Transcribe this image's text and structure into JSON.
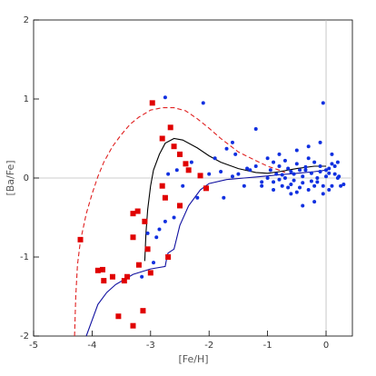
{
  "chart_data": {
    "type": "scatter",
    "xlabel": "[Fe/H]",
    "ylabel": "[Ba/Fe]",
    "xlim": [
      -5,
      0.45
    ],
    "ylim": [
      -2,
      2
    ],
    "xticks": [
      -5,
      -4,
      -3,
      -2,
      -1,
      0
    ],
    "yticks": [
      -2,
      -1,
      0,
      1,
      2
    ],
    "zero_lines": true,
    "series": [
      {
        "mode": "line",
        "dash": true,
        "color": "#e02020",
        "x": [
          -4.3,
          -4.28,
          -4.25,
          -4.2,
          -4.1,
          -4.0,
          -3.9,
          -3.8,
          -3.65,
          -3.5,
          -3.35,
          -3.2,
          -3.0,
          -2.8,
          -2.6,
          -2.4,
          -2.2,
          -2.0,
          -1.8,
          -1.5,
          -1.2,
          -1.0,
          -0.8,
          -0.7
        ],
        "y": [
          -2.0,
          -1.5,
          -1.1,
          -0.8,
          -0.45,
          -0.2,
          0.02,
          0.2,
          0.4,
          0.55,
          0.68,
          0.77,
          0.86,
          0.89,
          0.89,
          0.85,
          0.75,
          0.63,
          0.5,
          0.33,
          0.22,
          0.15,
          0.1,
          0.07
        ]
      },
      {
        "mode": "line",
        "dash": false,
        "color": "#000000",
        "x": [
          -3.1,
          -3.08,
          -3.05,
          -3.0,
          -2.95,
          -2.85,
          -2.75,
          -2.6,
          -2.45,
          -2.2,
          -2.0,
          -1.8,
          -1.5,
          -1.2,
          -1.0,
          -0.8,
          -0.5,
          -0.2,
          0.0
        ],
        "y": [
          -1.05,
          -0.7,
          -0.4,
          -0.1,
          0.1,
          0.3,
          0.44,
          0.5,
          0.48,
          0.38,
          0.28,
          0.2,
          0.12,
          0.07,
          0.06,
          0.08,
          0.12,
          0.15,
          0.15
        ]
      },
      {
        "mode": "line",
        "dash": false,
        "color": "#1010a0",
        "x": [
          -4.1,
          -4.0,
          -3.9,
          -3.75,
          -3.6,
          -3.3,
          -3.0,
          -2.75,
          -2.72,
          -2.7,
          -2.6,
          -2.5,
          -2.35,
          -2.15,
          -2.0,
          -1.7,
          -1.4,
          -1.1,
          -0.8,
          -0.5,
          -0.2,
          0.0
        ],
        "y": [
          -2.0,
          -1.8,
          -1.6,
          -1.45,
          -1.35,
          -1.22,
          -1.15,
          -1.12,
          -1.0,
          -0.95,
          -0.9,
          -0.6,
          -0.35,
          -0.15,
          -0.07,
          -0.02,
          0.0,
          0.02,
          0.04,
          0.06,
          0.08,
          0.1
        ]
      },
      {
        "mode": "markers",
        "marker": "square",
        "color": "#e00000",
        "x": [
          -2.97,
          -2.8,
          -2.66,
          -2.6,
          -2.5,
          -2.4,
          -2.35,
          -2.15,
          -2.05,
          -2.5,
          -2.75,
          -2.8,
          -3.3,
          -3.22,
          -3.1,
          -3.3,
          -3.05,
          -3.0,
          -3.2,
          -4.2,
          -3.9,
          -3.82,
          -3.8,
          -3.65,
          -3.4,
          -3.45,
          -3.55,
          -3.3,
          -3.13,
          -2.7
        ],
        "y": [
          0.95,
          0.5,
          0.64,
          0.4,
          0.3,
          0.18,
          0.1,
          0.03,
          -0.13,
          -0.35,
          -0.25,
          -0.1,
          -0.45,
          -0.42,
          -0.55,
          -0.75,
          -0.9,
          -1.2,
          -1.1,
          -0.78,
          -1.17,
          -1.16,
          -1.3,
          -1.25,
          -1.25,
          -1.3,
          -1.75,
          -1.87,
          -1.68,
          -1.0
        ]
      },
      {
        "mode": "markers",
        "marker": "circle",
        "color": "#1030e0",
        "x": [
          -2.75,
          -2.1,
          -0.05,
          -1.2,
          -1.6,
          -1.7,
          -1.55,
          -1.9,
          -2.3,
          -2.55,
          -2.7,
          -2.45,
          -2.2,
          -2.6,
          -2.75,
          -2.85,
          -3.05,
          -2.9,
          -3.15,
          -2.95,
          -1.75,
          -1.4,
          -1.0,
          -0.8,
          -0.5,
          -0.3,
          -0.1,
          0.1,
          0.2,
          0.25,
          0.3,
          0.15,
          -0.2,
          -0.4,
          -0.6,
          -0.9,
          -1.1,
          -1.3,
          -1.5,
          -1.0,
          -0.95,
          -0.9,
          -0.85,
          -0.8,
          -0.75,
          -0.7,
          -0.65,
          -0.6,
          -0.55,
          -0.5,
          -0.45,
          -0.4,
          -0.35,
          -0.3,
          -0.25,
          -0.2,
          -0.15,
          -0.1,
          -0.05,
          0.0,
          0.05,
          0.1,
          0.15,
          0.2,
          -0.9,
          -0.7,
          -0.5,
          -0.3,
          -0.1,
          0.05,
          -0.8,
          -0.6,
          -0.4,
          -0.2,
          0.0,
          0.1,
          -1.2,
          -1.1,
          -0.75,
          -0.55,
          -0.35,
          -0.15,
          0.05,
          0.22,
          -0.65,
          -0.45,
          -0.25,
          -0.05,
          -1.35,
          -1.6,
          -1.8,
          -2.0
        ],
        "y": [
          1.02,
          0.95,
          0.95,
          0.62,
          0.45,
          0.37,
          0.3,
          0.25,
          0.2,
          0.1,
          0.05,
          -0.1,
          -0.25,
          -0.5,
          -0.55,
          -0.65,
          -0.7,
          -0.75,
          -1.25,
          -1.07,
          -0.25,
          -0.1,
          0.25,
          0.3,
          0.35,
          0.4,
          0.45,
          0.3,
          0.2,
          -0.1,
          -0.08,
          0.15,
          -0.3,
          -0.35,
          -0.2,
          -0.15,
          -0.05,
          0.1,
          0.05,
          0.0,
          0.1,
          -0.05,
          0.05,
          0.15,
          -0.1,
          0.0,
          0.12,
          -0.08,
          0.05,
          0.18,
          -0.12,
          0.02,
          0.1,
          -0.15,
          0.06,
          0.2,
          -0.05,
          0.08,
          -0.2,
          0.02,
          0.12,
          -0.1,
          0.05,
          0.0,
          0.2,
          0.22,
          -0.18,
          0.25,
          0.15,
          -0.15,
          -0.02,
          0.08,
          -0.06,
          -0.1,
          0.1,
          0.18,
          0.15,
          -0.1,
          0.04,
          -0.03,
          0.14,
          0.0,
          0.06,
          0.02,
          -0.12,
          0.1,
          -0.04,
          -0.1,
          0.12,
          0.02,
          0.08,
          0.05
        ]
      }
    ]
  }
}
